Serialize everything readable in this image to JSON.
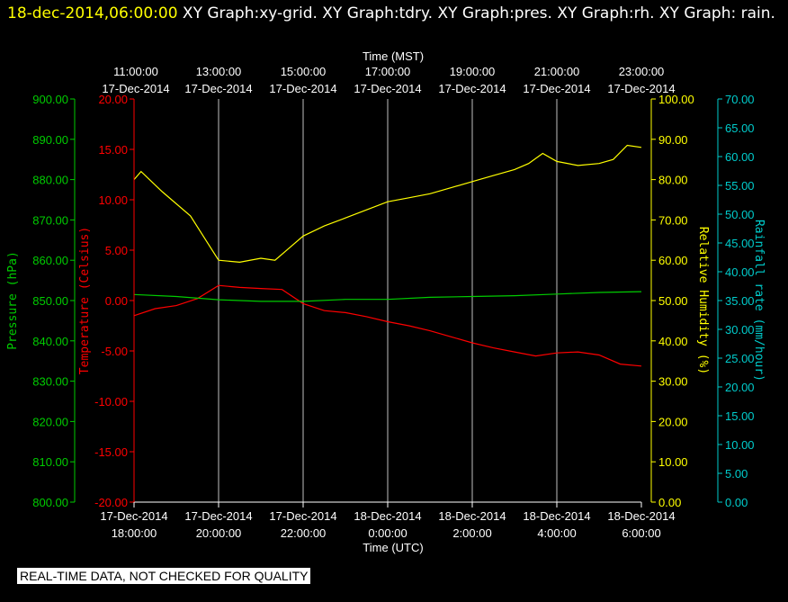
{
  "header": {
    "timestamp": "18-dec-2014,06:00:00",
    "titles": "XY Graph:xy-grid.  XY Graph:tdry.  XY Graph:pres.  XY Graph:rh.  XY Graph: rain."
  },
  "disclaimer": "REAL-TIME DATA, NOT CHECKED FOR QUALITY",
  "colors": {
    "temperature": "#ff0000",
    "pressure": "#00cc00",
    "humidity": "#ffff00",
    "rain": "#00cccc",
    "grid": "#ffffff"
  },
  "chart_data": {
    "type": "line",
    "top_axis": {
      "label": "Time (MST)",
      "ticks": [
        [
          "11:00:00",
          "17-Dec-2014"
        ],
        [
          "13:00:00",
          "17-Dec-2014"
        ],
        [
          "15:00:00",
          "17-Dec-2014"
        ],
        [
          "17:00:00",
          "17-Dec-2014"
        ],
        [
          "19:00:00",
          "17-Dec-2014"
        ],
        [
          "21:00:00",
          "17-Dec-2014"
        ],
        [
          "23:00:00",
          "17-Dec-2014"
        ]
      ]
    },
    "bottom_axis": {
      "label": "Time (UTC)",
      "ticks": [
        [
          "17-Dec-2014",
          "18:00:00"
        ],
        [
          "17-Dec-2014",
          "20:00:00"
        ],
        [
          "17-Dec-2014",
          "22:00:00"
        ],
        [
          "18-Dec-2014",
          "0:00:00"
        ],
        [
          "18-Dec-2014",
          "2:00:00"
        ],
        [
          "18-Dec-2014",
          "4:00:00"
        ],
        [
          "18-Dec-2014",
          "6:00:00"
        ]
      ]
    },
    "x_range_utc_hours": [
      18,
      30
    ],
    "axes": {
      "pressure": {
        "label": "Pressure (hPa)",
        "range": [
          800,
          900
        ],
        "ticks": [
          "800.00",
          "810.00",
          "820.00",
          "830.00",
          "840.00",
          "850.00",
          "860.00",
          "870.00",
          "880.00",
          "890.00",
          "900.00"
        ]
      },
      "temperature": {
        "label": "Temperature (Celsius)",
        "range": [
          -20,
          20
        ],
        "ticks": [
          "-20.00",
          "-15.00",
          "-10.00",
          "-5.00",
          "0.00",
          "5.00",
          "10.00",
          "15.00",
          "20.00"
        ]
      },
      "humidity": {
        "label": "Relative Humidity (%)",
        "range": [
          0,
          100
        ],
        "ticks": [
          "0.00",
          "10.00",
          "20.00",
          "30.00",
          "40.00",
          "50.00",
          "60.00",
          "70.00",
          "80.00",
          "90.00",
          "100.00"
        ]
      },
      "rain": {
        "label": "Rainfall rate (mm/hour)",
        "range": [
          0,
          70
        ],
        "ticks": [
          "0.00",
          "5.00",
          "10.00",
          "15.00",
          "20.00",
          "25.00",
          "30.00",
          "35.00",
          "40.00",
          "45.00",
          "50.00",
          "55.00",
          "60.00",
          "65.00",
          "70.00"
        ]
      }
    },
    "series": [
      {
        "name": "tdry",
        "axis": "temperature",
        "x": [
          "17-Dec-2014 18:00",
          "17-Dec-2014 18:30",
          "17-Dec-2014 19:00",
          "17-Dec-2014 19:30",
          "17-Dec-2014 20:00",
          "17-Dec-2014 20:30",
          "17-Dec-2014 21:00",
          "17-Dec-2014 21:30",
          "17-Dec-2014 22:00",
          "17-Dec-2014 22:30",
          "17-Dec-2014 23:00",
          "17-Dec-2014 23:30",
          "18-Dec-2014 00:00",
          "18-Dec-2014 00:30",
          "18-Dec-2014 01:00",
          "18-Dec-2014 01:30",
          "18-Dec-2014 02:00",
          "18-Dec-2014 02:30",
          "18-Dec-2014 03:00",
          "18-Dec-2014 03:30",
          "18-Dec-2014 04:00",
          "18-Dec-2014 04:30",
          "18-Dec-2014 05:00",
          "18-Dec-2014 05:30",
          "18-Dec-2014 06:00"
        ],
        "y": [
          -1.5,
          -0.8,
          -0.5,
          0.2,
          1.5,
          1.3,
          1.2,
          1.1,
          -0.3,
          -1.0,
          -1.2,
          -1.6,
          -2.1,
          -2.5,
          -3.0,
          -3.6,
          -4.2,
          -4.7,
          -5.1,
          -5.5,
          -5.2,
          -5.1,
          -5.4,
          -6.3,
          -6.5
        ]
      },
      {
        "name": "pres",
        "axis": "pressure",
        "x": [
          "17-Dec-2014 18:00",
          "17-Dec-2014 19:00",
          "17-Dec-2014 20:00",
          "17-Dec-2014 21:00",
          "17-Dec-2014 22:00",
          "17-Dec-2014 23:00",
          "18-Dec-2014 00:00",
          "18-Dec-2014 01:00",
          "18-Dec-2014 02:00",
          "18-Dec-2014 03:00",
          "18-Dec-2014 04:00",
          "18-Dec-2014 05:00",
          "18-Dec-2014 06:00"
        ],
        "y": [
          851.5,
          851.0,
          850.2,
          849.8,
          849.8,
          850.3,
          850.3,
          850.8,
          851.0,
          851.2,
          851.6,
          852.0,
          852.2
        ]
      },
      {
        "name": "rh",
        "axis": "humidity",
        "x": [
          "17-Dec-2014 18:00",
          "17-Dec-2014 18:10",
          "17-Dec-2014 18:40",
          "17-Dec-2014 19:20",
          "17-Dec-2014 20:00",
          "17-Dec-2014 20:30",
          "17-Dec-2014 21:00",
          "17-Dec-2014 21:20",
          "17-Dec-2014 21:40",
          "17-Dec-2014 22:00",
          "17-Dec-2014 22:30",
          "17-Dec-2014 23:00",
          "17-Dec-2014 23:30",
          "18-Dec-2014 00:00",
          "18-Dec-2014 00:30",
          "18-Dec-2014 01:00",
          "18-Dec-2014 01:30",
          "18-Dec-2014 02:00",
          "18-Dec-2014 02:30",
          "18-Dec-2014 03:00",
          "18-Dec-2014 03:20",
          "18-Dec-2014 03:40",
          "18-Dec-2014 04:00",
          "18-Dec-2014 04:30",
          "18-Dec-2014 05:00",
          "18-Dec-2014 05:20",
          "18-Dec-2014 05:40",
          "18-Dec-2014 06:00"
        ],
        "y": [
          80.0,
          82.0,
          77.0,
          71.0,
          60.0,
          59.5,
          60.5,
          60.0,
          63.0,
          66.0,
          68.5,
          70.5,
          72.5,
          74.5,
          75.5,
          76.5,
          78.0,
          79.5,
          81.0,
          82.5,
          84.0,
          86.5,
          84.5,
          83.5,
          84.0,
          85.0,
          88.5,
          88.0
        ]
      }
    ]
  }
}
